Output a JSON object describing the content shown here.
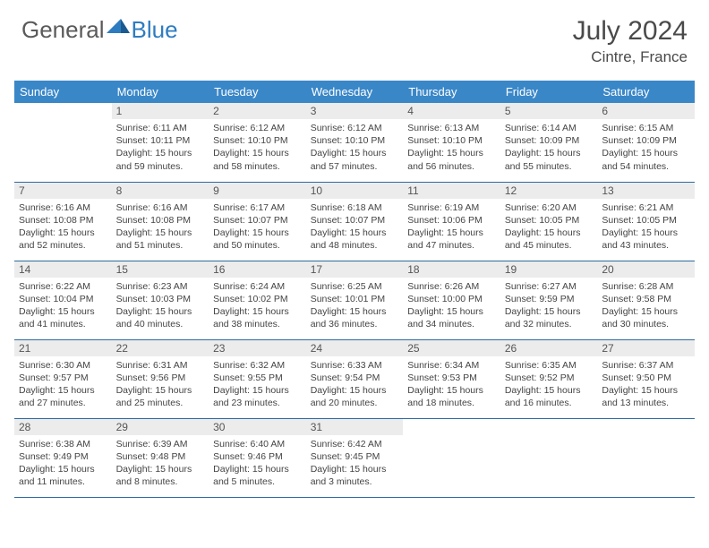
{
  "logo": {
    "word1": "General",
    "word2": "Blue"
  },
  "title": "July 2024",
  "location": "Cintre, France",
  "day_headers": [
    "Sunday",
    "Monday",
    "Tuesday",
    "Wednesday",
    "Thursday",
    "Friday",
    "Saturday"
  ],
  "colors": {
    "header_bg": "#3a87c8",
    "header_text": "#ffffff",
    "daynum_bg": "#ececec",
    "border": "#2d6aa0",
    "logo_gray": "#5a5a5a",
    "logo_blue": "#2e7cc0",
    "body_text": "#444444"
  },
  "start_offset": 1,
  "days": [
    {
      "n": 1,
      "sunrise": "6:11 AM",
      "sunset": "10:11 PM",
      "daylight": "15 hours and 59 minutes."
    },
    {
      "n": 2,
      "sunrise": "6:12 AM",
      "sunset": "10:10 PM",
      "daylight": "15 hours and 58 minutes."
    },
    {
      "n": 3,
      "sunrise": "6:12 AM",
      "sunset": "10:10 PM",
      "daylight": "15 hours and 57 minutes."
    },
    {
      "n": 4,
      "sunrise": "6:13 AM",
      "sunset": "10:10 PM",
      "daylight": "15 hours and 56 minutes."
    },
    {
      "n": 5,
      "sunrise": "6:14 AM",
      "sunset": "10:09 PM",
      "daylight": "15 hours and 55 minutes."
    },
    {
      "n": 6,
      "sunrise": "6:15 AM",
      "sunset": "10:09 PM",
      "daylight": "15 hours and 54 minutes."
    },
    {
      "n": 7,
      "sunrise": "6:16 AM",
      "sunset": "10:08 PM",
      "daylight": "15 hours and 52 minutes."
    },
    {
      "n": 8,
      "sunrise": "6:16 AM",
      "sunset": "10:08 PM",
      "daylight": "15 hours and 51 minutes."
    },
    {
      "n": 9,
      "sunrise": "6:17 AM",
      "sunset": "10:07 PM",
      "daylight": "15 hours and 50 minutes."
    },
    {
      "n": 10,
      "sunrise": "6:18 AM",
      "sunset": "10:07 PM",
      "daylight": "15 hours and 48 minutes."
    },
    {
      "n": 11,
      "sunrise": "6:19 AM",
      "sunset": "10:06 PM",
      "daylight": "15 hours and 47 minutes."
    },
    {
      "n": 12,
      "sunrise": "6:20 AM",
      "sunset": "10:05 PM",
      "daylight": "15 hours and 45 minutes."
    },
    {
      "n": 13,
      "sunrise": "6:21 AM",
      "sunset": "10:05 PM",
      "daylight": "15 hours and 43 minutes."
    },
    {
      "n": 14,
      "sunrise": "6:22 AM",
      "sunset": "10:04 PM",
      "daylight": "15 hours and 41 minutes."
    },
    {
      "n": 15,
      "sunrise": "6:23 AM",
      "sunset": "10:03 PM",
      "daylight": "15 hours and 40 minutes."
    },
    {
      "n": 16,
      "sunrise": "6:24 AM",
      "sunset": "10:02 PM",
      "daylight": "15 hours and 38 minutes."
    },
    {
      "n": 17,
      "sunrise": "6:25 AM",
      "sunset": "10:01 PM",
      "daylight": "15 hours and 36 minutes."
    },
    {
      "n": 18,
      "sunrise": "6:26 AM",
      "sunset": "10:00 PM",
      "daylight": "15 hours and 34 minutes."
    },
    {
      "n": 19,
      "sunrise": "6:27 AM",
      "sunset": "9:59 PM",
      "daylight": "15 hours and 32 minutes."
    },
    {
      "n": 20,
      "sunrise": "6:28 AM",
      "sunset": "9:58 PM",
      "daylight": "15 hours and 30 minutes."
    },
    {
      "n": 21,
      "sunrise": "6:30 AM",
      "sunset": "9:57 PM",
      "daylight": "15 hours and 27 minutes."
    },
    {
      "n": 22,
      "sunrise": "6:31 AM",
      "sunset": "9:56 PM",
      "daylight": "15 hours and 25 minutes."
    },
    {
      "n": 23,
      "sunrise": "6:32 AM",
      "sunset": "9:55 PM",
      "daylight": "15 hours and 23 minutes."
    },
    {
      "n": 24,
      "sunrise": "6:33 AM",
      "sunset": "9:54 PM",
      "daylight": "15 hours and 20 minutes."
    },
    {
      "n": 25,
      "sunrise": "6:34 AM",
      "sunset": "9:53 PM",
      "daylight": "15 hours and 18 minutes."
    },
    {
      "n": 26,
      "sunrise": "6:35 AM",
      "sunset": "9:52 PM",
      "daylight": "15 hours and 16 minutes."
    },
    {
      "n": 27,
      "sunrise": "6:37 AM",
      "sunset": "9:50 PM",
      "daylight": "15 hours and 13 minutes."
    },
    {
      "n": 28,
      "sunrise": "6:38 AM",
      "sunset": "9:49 PM",
      "daylight": "15 hours and 11 minutes."
    },
    {
      "n": 29,
      "sunrise": "6:39 AM",
      "sunset": "9:48 PM",
      "daylight": "15 hours and 8 minutes."
    },
    {
      "n": 30,
      "sunrise": "6:40 AM",
      "sunset": "9:46 PM",
      "daylight": "15 hours and 5 minutes."
    },
    {
      "n": 31,
      "sunrise": "6:42 AM",
      "sunset": "9:45 PM",
      "daylight": "15 hours and 3 minutes."
    }
  ],
  "labels": {
    "sunrise": "Sunrise:",
    "sunset": "Sunset:",
    "daylight": "Daylight:"
  }
}
